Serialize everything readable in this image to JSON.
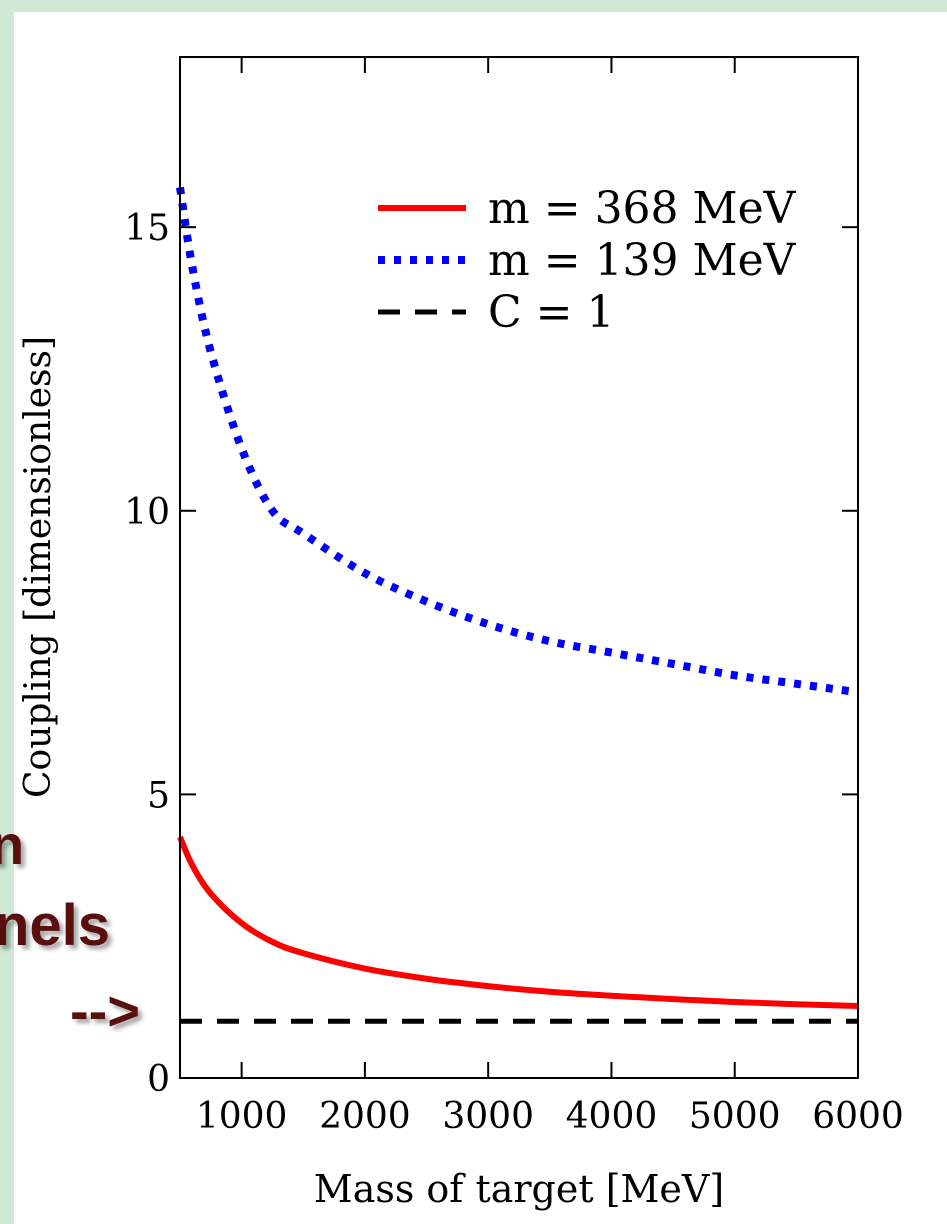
{
  "slide": {
    "fragment_1": "n",
    "fragment_2": "nels",
    "fragment_3": "-->"
  },
  "chart_data": {
    "type": "line",
    "xlabel": "Mass of target [MeV]",
    "ylabel": "Coupling [dimensionless]",
    "xlim": [
      500,
      6000
    ],
    "ylim": [
      0,
      18
    ],
    "xticks": [
      1000,
      2000,
      3000,
      4000,
      5000,
      6000
    ],
    "yticks": [
      0,
      5,
      10,
      15
    ],
    "legend_position": "top-right",
    "grid": false,
    "series": [
      {
        "name": "m = 368 MeV",
        "color": "#ff0000",
        "style": "solid",
        "x": [
          500,
          600,
          750,
          1000,
          1250,
          1500,
          2000,
          2500,
          3000,
          3500,
          4000,
          4500,
          5000,
          5500,
          6000
        ],
        "y": [
          4.25,
          3.75,
          3.25,
          2.73,
          2.4,
          2.2,
          1.93,
          1.75,
          1.62,
          1.52,
          1.45,
          1.39,
          1.34,
          1.3,
          1.27
        ]
      },
      {
        "name": "m = 139 MeV",
        "color": "#0000ff",
        "style": "dotted",
        "x": [
          500,
          600,
          750,
          1000,
          1250,
          1500,
          2000,
          2500,
          3000,
          3500,
          4000,
          4500,
          5000,
          5500,
          6000
        ],
        "y": [
          15.7,
          14.3,
          12.8,
          11.1,
          10.0,
          9.6,
          8.9,
          8.4,
          8.0,
          7.7,
          7.5,
          7.3,
          7.1,
          6.95,
          6.8
        ]
      },
      {
        "name": "C = 1",
        "color": "#000000",
        "style": "dashed",
        "x": [
          500,
          6000
        ],
        "y": [
          1,
          1
        ]
      }
    ]
  }
}
